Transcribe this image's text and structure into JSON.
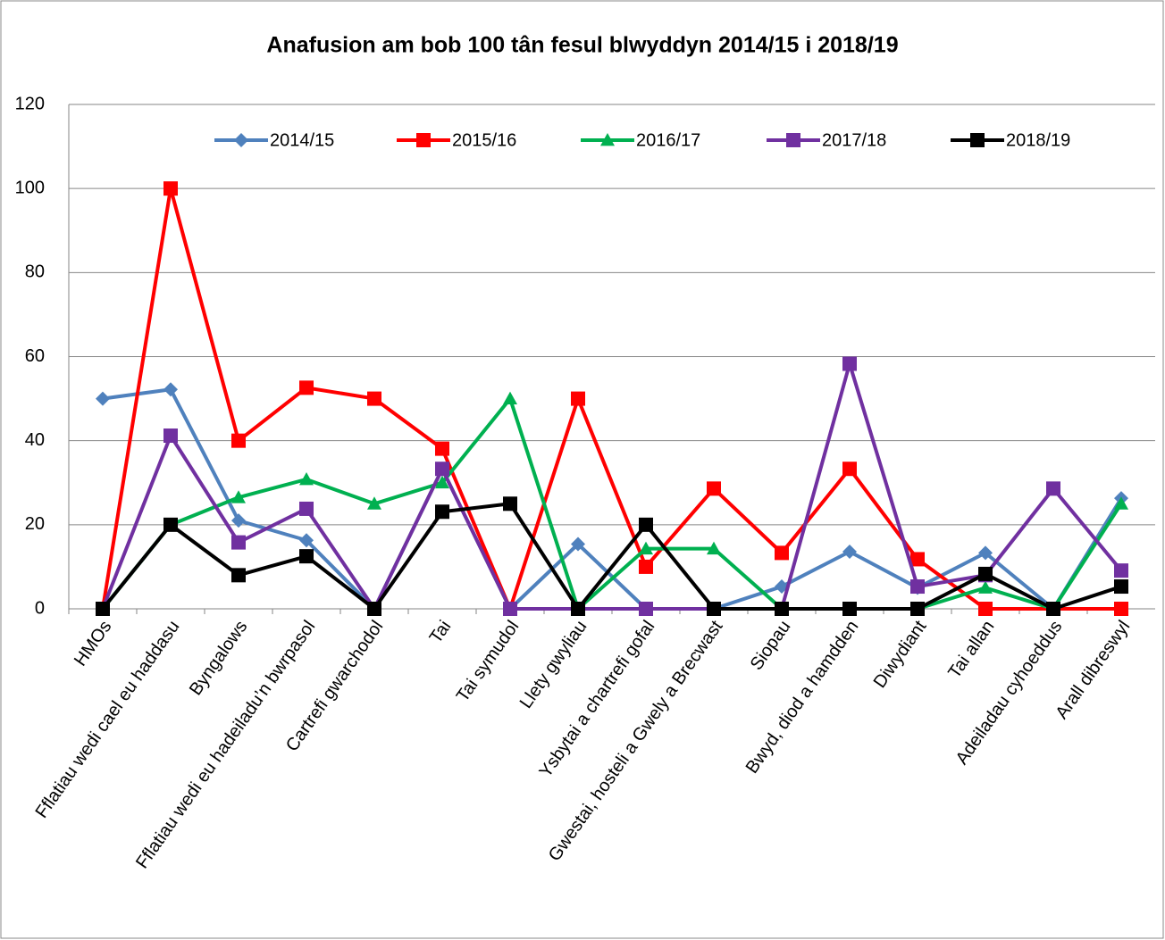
{
  "chart_data": {
    "type": "line",
    "title": "Anafusion am bob 100 tân fesul blwyddyn 2014/15 i 2018/19",
    "categories": [
      "HMOs",
      "Fflatiau wedi cael eu haddasu",
      "Byngalows",
      "Fflatiau wedi eu hadeiladu’n bwrpasol",
      "Cartrefi gwarchodol",
      "Tai",
      "Tai symudol",
      "Llety gwyliau",
      "Ysbytai a chartrefi gofal",
      "Gwestai, hosteli a Gwely a Brecwast",
      "Siopau",
      "Bwyd, diod a hamdden",
      "Diwydiant",
      "Tai allan",
      "Adeiladau cyhoeddus",
      "Arall dibreswyl"
    ],
    "series": [
      {
        "name": "2014/15",
        "color": "#4f81bd",
        "marker": "diamond",
        "values": [
          50,
          52.2,
          21,
          16.3,
          0,
          33.3,
          0,
          15.4,
          0,
          0,
          5.3,
          13.6,
          5,
          13.3,
          0,
          26.3
        ]
      },
      {
        "name": "2015/16",
        "color": "#ff0000",
        "marker": "square",
        "values": [
          0,
          100,
          40,
          52.6,
          50,
          38.1,
          0,
          50,
          10,
          28.6,
          13.3,
          33.3,
          11.8,
          0,
          0,
          0
        ]
      },
      {
        "name": "2016/17",
        "color": "#00b050",
        "marker": "triangle",
        "values": [
          0,
          20,
          26.5,
          30.8,
          25,
          30,
          50,
          0,
          14.3,
          14.3,
          0,
          0,
          0,
          5,
          0,
          25
        ]
      },
      {
        "name": "2017/18",
        "color": "#7030a0",
        "marker": "square",
        "values": [
          0,
          41.2,
          15.8,
          23.8,
          0,
          33.3,
          0,
          0,
          0,
          0,
          0,
          58.3,
          5.3,
          8,
          28.6,
          9.1
        ]
      },
      {
        "name": "2018/19",
        "color": "#000000",
        "marker": "square",
        "values": [
          0,
          20,
          8,
          12.5,
          0,
          23.1,
          25,
          0,
          20,
          0,
          0,
          0,
          0,
          8.3,
          0,
          5.3
        ]
      }
    ],
    "ylim": [
      0,
      120
    ],
    "yticks": [
      0,
      20,
      40,
      60,
      80,
      100,
      120
    ],
    "grid": true,
    "legend": "top"
  }
}
